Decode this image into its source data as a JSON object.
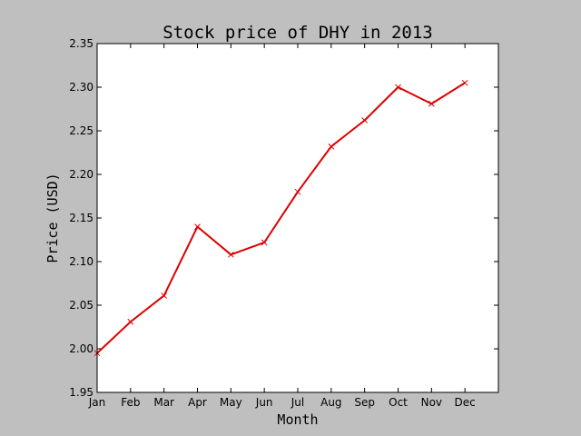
{
  "chart_data": {
    "type": "line",
    "title": "Stock price of DHY in 2013",
    "xlabel": "Month",
    "ylabel": "Price (USD)",
    "categories": [
      "Jan",
      "Feb",
      "Mar",
      "Apr",
      "May",
      "Jun",
      "Jul",
      "Aug",
      "Sep",
      "Oct",
      "Nov",
      "Dec"
    ],
    "series": [
      {
        "values": [
          1.995,
          2.031,
          2.061,
          2.14,
          2.108,
          2.122,
          2.18,
          2.232,
          2.262,
          2.3,
          2.281,
          2.305
        ],
        "color": "#dd0000",
        "marker": "x"
      }
    ],
    "ylim": [
      1.95,
      2.35
    ],
    "yticks": [
      "1.95",
      "2.00",
      "2.05",
      "2.10",
      "2.15",
      "2.20",
      "2.25",
      "2.30",
      "2.35"
    ],
    "grid": false,
    "background": "#bfbfbf",
    "plot_background": "#ffffff"
  }
}
